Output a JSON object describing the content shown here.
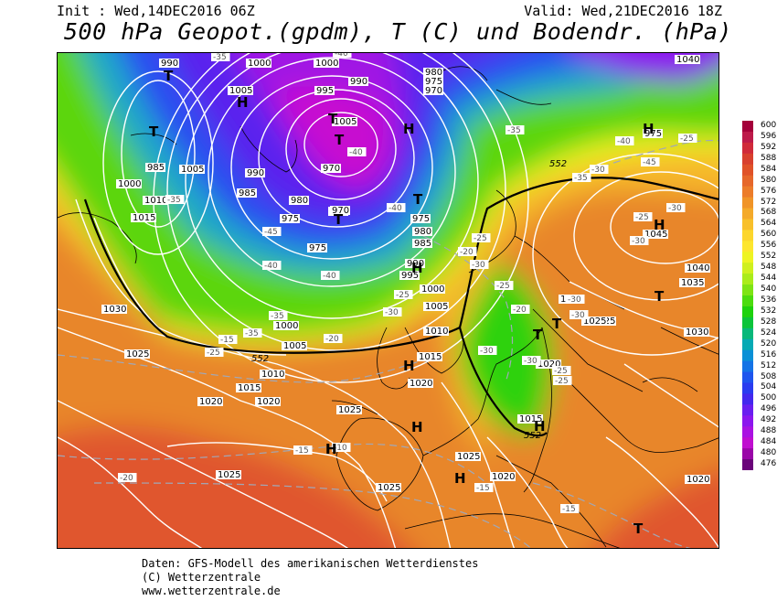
{
  "header": {
    "init": "Init : Wed,14DEC2016 06Z",
    "valid": "Valid: Wed,21DEC2016 18Z",
    "title": "500 hPa Geopot.(gpdm), T (C) und Bodendr. (hPa)"
  },
  "scale": {
    "labels": [
      "600",
      "596",
      "592",
      "588",
      "584",
      "580",
      "576",
      "572",
      "568",
      "564",
      "560",
      "556",
      "552",
      "548",
      "544",
      "540",
      "536",
      "532",
      "528",
      "524",
      "520",
      "516",
      "512",
      "508",
      "504",
      "500",
      "496",
      "492",
      "488",
      "484",
      "480",
      "476"
    ],
    "colors": [
      "#a4003a",
      "#bd1a4a",
      "#d02a3a",
      "#d8402e",
      "#e05228",
      "#e6672a",
      "#ec7c2a",
      "#f09428",
      "#f4aa2a",
      "#f8c02a",
      "#fcd62c",
      "#fde62e",
      "#eef422",
      "#cff01e",
      "#aaec1a",
      "#7ee414",
      "#4cdc0e",
      "#1ed20c",
      "#0cc43a",
      "#08b87a",
      "#06aab4",
      "#0a90d6",
      "#1473e6",
      "#1e55ee",
      "#2a3cf0",
      "#4428ee",
      "#6a1ef0",
      "#8c16ee",
      "#aa12e2",
      "#c00ed0",
      "#9a06a8",
      "#6a047a"
    ]
  },
  "map": {
    "pressure_labels": [
      {
        "t": "990"
      },
      {
        "t": "1000"
      },
      {
        "t": "1005"
      },
      {
        "t": "995"
      },
      {
        "t": "990"
      },
      {
        "t": "1000"
      },
      {
        "t": "1005"
      },
      {
        "t": "980"
      },
      {
        "t": "975"
      },
      {
        "t": "970"
      },
      {
        "t": "985"
      },
      {
        "t": "1005"
      },
      {
        "t": "1000"
      },
      {
        "t": "1010"
      },
      {
        "t": "1015"
      },
      {
        "t": "990"
      },
      {
        "t": "985"
      },
      {
        "t": "980"
      },
      {
        "t": "975"
      },
      {
        "t": "970"
      },
      {
        "t": "975"
      },
      {
        "t": "975"
      },
      {
        "t": "980"
      },
      {
        "t": "985"
      },
      {
        "t": "990"
      },
      {
        "t": "995"
      },
      {
        "t": "1000"
      },
      {
        "t": "1005"
      },
      {
        "t": "1010"
      },
      {
        "t": "1020"
      },
      {
        "t": "1030"
      },
      {
        "t": "1025"
      },
      {
        "t": "1020"
      },
      {
        "t": "1015"
      },
      {
        "t": "1010"
      },
      {
        "t": "1005"
      },
      {
        "t": "1000"
      },
      {
        "t": "1015"
      },
      {
        "t": "1020"
      },
      {
        "t": "1025"
      },
      {
        "t": "1025"
      },
      {
        "t": "1025"
      },
      {
        "t": "1025"
      },
      {
        "t": "1020"
      },
      {
        "t": "1015"
      },
      {
        "t": "1020"
      },
      {
        "t": "1030"
      },
      {
        "t": "1025"
      },
      {
        "t": "1035"
      },
      {
        "t": "1040"
      },
      {
        "t": "1045"
      },
      {
        "t": "1040"
      },
      {
        "t": "1030"
      },
      {
        "t": "1020"
      },
      {
        "t": "975"
      },
      {
        "t": "1015"
      },
      {
        "t": "1025"
      },
      {
        "t": "970"
      },
      {
        "t": "970"
      }
    ],
    "temp_labels": [
      {
        "t": "-35"
      },
      {
        "t": "-40"
      },
      {
        "t": "-35"
      },
      {
        "t": "-40"
      },
      {
        "t": "-40"
      },
      {
        "t": "-45"
      },
      {
        "t": "-40"
      },
      {
        "t": "-40"
      },
      {
        "t": "-35"
      },
      {
        "t": "-35"
      },
      {
        "t": "-30"
      },
      {
        "t": "-25"
      },
      {
        "t": "-30"
      },
      {
        "t": "-25"
      },
      {
        "t": "-20"
      },
      {
        "t": "-25"
      },
      {
        "t": "-20"
      },
      {
        "t": "-30"
      },
      {
        "t": "-30"
      },
      {
        "t": "-25"
      },
      {
        "t": "-25"
      },
      {
        "t": "-30"
      },
      {
        "t": "-30"
      },
      {
        "t": "-30"
      },
      {
        "t": "-25"
      },
      {
        "t": "-30"
      },
      {
        "t": "-25"
      },
      {
        "t": "-20"
      },
      {
        "t": "-15"
      },
      {
        "t": "-15"
      },
      {
        "t": "-10"
      },
      {
        "t": "-20"
      },
      {
        "t": "-25"
      },
      {
        "t": "-15"
      },
      {
        "t": "-15"
      },
      {
        "t": "-45"
      },
      {
        "t": "-40"
      },
      {
        "t": "-35"
      },
      {
        "t": "-30"
      },
      {
        "t": "-35"
      }
    ],
    "geopot_labels": [
      {
        "t": "552"
      },
      {
        "t": "552"
      },
      {
        "t": "552"
      }
    ],
    "pressure_centers": [
      {
        "t": "T"
      },
      {
        "t": "H"
      },
      {
        "t": "T"
      },
      {
        "t": "T"
      },
      {
        "t": "H"
      },
      {
        "t": "T"
      },
      {
        "t": "T"
      },
      {
        "t": "H"
      },
      {
        "t": "T"
      },
      {
        "t": "H"
      },
      {
        "t": "T"
      },
      {
        "t": "H"
      },
      {
        "t": "T"
      },
      {
        "t": "T"
      },
      {
        "t": "H"
      },
      {
        "t": "H"
      },
      {
        "t": "H"
      },
      {
        "t": "H"
      },
      {
        "t": "H"
      },
      {
        "t": "T"
      },
      {
        "t": "H"
      }
    ]
  },
  "footer": {
    "line1": "Daten: GFS-Modell des amerikanischen Wetterdienstes",
    "line2": "(C) Wetterzentrale",
    "line3": "www.wetterzentrale.de"
  }
}
